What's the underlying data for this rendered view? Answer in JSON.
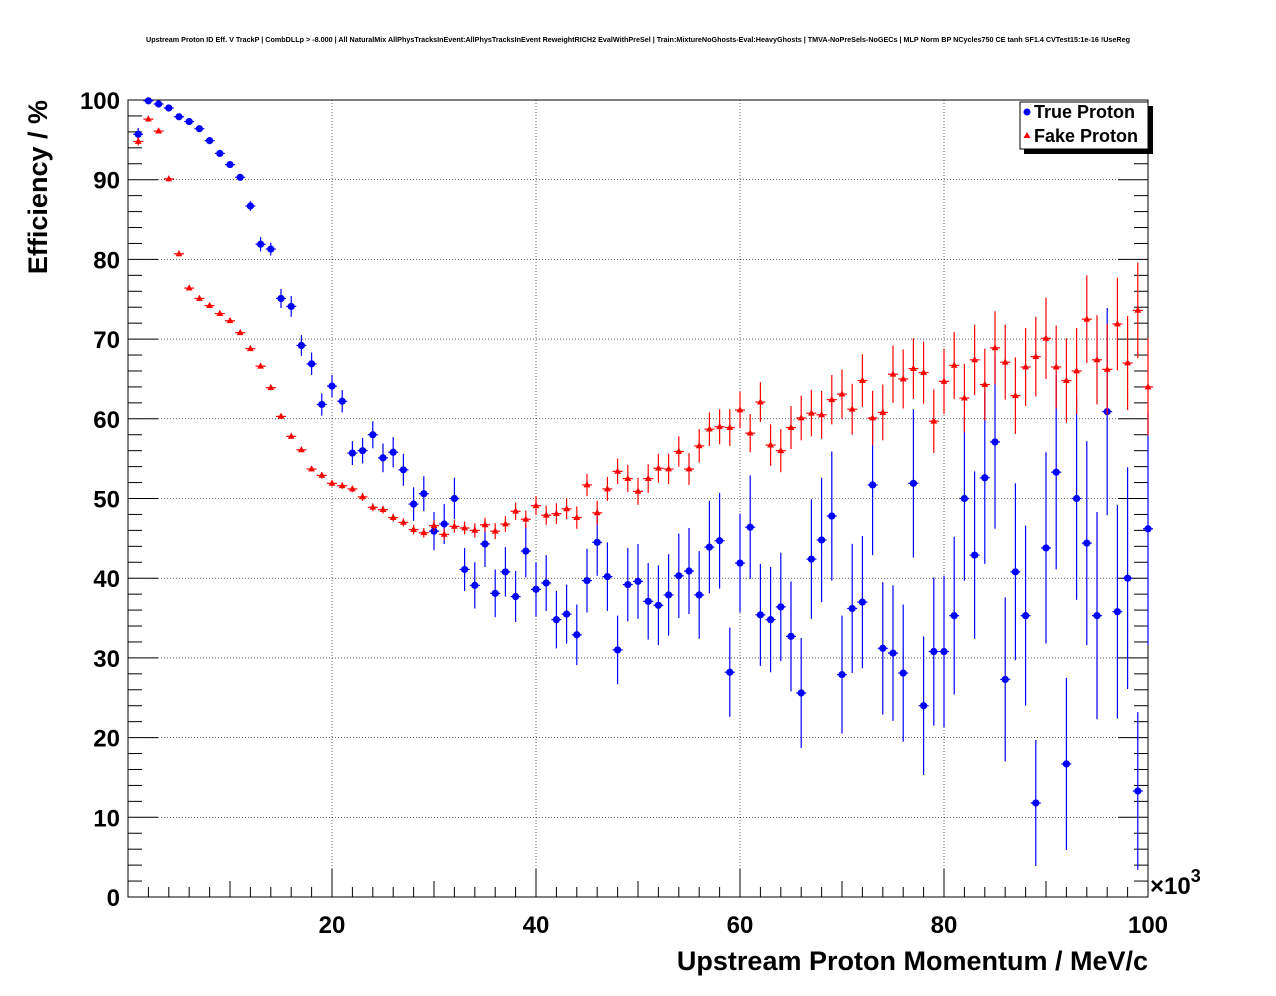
{
  "chart_data": {
    "type": "scatter",
    "title": "Upstream Proton ID Eff. V TrackP | CombDLLp > -8.000 | All NaturalMix AllPhysTracksInEvent:AllPhysTracksInEvent ReweightRICH2 EvalWithPreSel | Train:MixtureNoGhosts-Eval:HeavyGhosts | TMVA-NoPreSels-NoGECs | MLP Norm BP NCycles750 CE tanh SF1.4 CVTest15:1e-16 !UseReg",
    "xlabel": "Upstream Proton Momentum / MeV/c",
    "ylabel": "Efficiency / %",
    "x_multiplier_label": "×10",
    "x_multiplier_exp": "3",
    "xlim": [
      0,
      100
    ],
    "ylim": [
      0,
      100
    ],
    "x_ticks": [
      20,
      40,
      60,
      80,
      100
    ],
    "y_ticks": [
      0,
      10,
      20,
      30,
      40,
      50,
      60,
      70,
      80,
      90,
      100
    ],
    "grid": true,
    "legend_position": "top-right",
    "series": [
      {
        "name": "True Proton",
        "color": "#0000ff",
        "marker": "circle",
        "points": [
          [
            1.0,
            95.7,
            0.8
          ],
          [
            2.0,
            99.9,
            0.3
          ],
          [
            3.0,
            99.5,
            0.3
          ],
          [
            4.0,
            99.0,
            0.3
          ],
          [
            5.0,
            97.9,
            0.4
          ],
          [
            6.0,
            97.3,
            0.4
          ],
          [
            7.0,
            96.4,
            0.4
          ],
          [
            8.0,
            94.9,
            0.4
          ],
          [
            9.0,
            93.3,
            0.4
          ],
          [
            10.0,
            91.9,
            0.4
          ],
          [
            11.0,
            90.3,
            0.4
          ],
          [
            12.0,
            86.7,
            0.6
          ],
          [
            13.0,
            81.9,
            0.9
          ],
          [
            14.0,
            81.3,
            0.8
          ],
          [
            15.0,
            75.1,
            1.2
          ],
          [
            16.0,
            74.1,
            1.3
          ],
          [
            17.0,
            69.2,
            1.3
          ],
          [
            18.0,
            66.9,
            1.4
          ],
          [
            19.0,
            61.8,
            1.4
          ],
          [
            20.0,
            64.1,
            1.4
          ],
          [
            21.0,
            62.2,
            1.4
          ],
          [
            22.0,
            55.7,
            1.5
          ],
          [
            23.0,
            56.0,
            1.6
          ],
          [
            24.0,
            58.0,
            1.7
          ],
          [
            25.0,
            55.1,
            1.8
          ],
          [
            26.0,
            55.8,
            1.9
          ],
          [
            27.0,
            53.6,
            2.0
          ],
          [
            28.0,
            49.3,
            2.1
          ],
          [
            29.0,
            50.6,
            2.2
          ],
          [
            30.0,
            45.9,
            2.4
          ],
          [
            31.0,
            46.8,
            2.5
          ],
          [
            32.0,
            50.0,
            2.6
          ],
          [
            33.0,
            41.1,
            2.7
          ],
          [
            34.0,
            39.1,
            2.9
          ],
          [
            35.0,
            44.3,
            2.9
          ],
          [
            36.0,
            38.1,
            3.0
          ],
          [
            37.0,
            40.8,
            3.1
          ],
          [
            38.0,
            37.7,
            3.2
          ],
          [
            39.0,
            43.4,
            3.3
          ],
          [
            40.0,
            38.6,
            3.4
          ],
          [
            41.0,
            39.4,
            3.5
          ],
          [
            42.0,
            34.8,
            3.6
          ],
          [
            43.0,
            35.5,
            3.7
          ],
          [
            44.0,
            32.9,
            3.8
          ],
          [
            45.0,
            39.7,
            4.0
          ],
          [
            46.0,
            44.5,
            4.2
          ],
          [
            47.0,
            40.2,
            4.3
          ],
          [
            48.0,
            31.0,
            4.3
          ],
          [
            49.0,
            39.2,
            4.6
          ],
          [
            50.0,
            39.6,
            4.7
          ],
          [
            51.0,
            37.1,
            4.8
          ],
          [
            52.0,
            36.6,
            5.0
          ],
          [
            53.0,
            37.9,
            5.1
          ],
          [
            54.0,
            40.3,
            5.3
          ],
          [
            55.0,
            40.9,
            5.4
          ],
          [
            56.0,
            37.9,
            5.5
          ],
          [
            57.0,
            43.9,
            5.8
          ],
          [
            58.0,
            44.7,
            6.0
          ],
          [
            59.0,
            28.2,
            5.6
          ],
          [
            60.0,
            41.9,
            6.2
          ],
          [
            61.0,
            46.4,
            6.5
          ],
          [
            62.0,
            35.4,
            6.4
          ],
          [
            63.0,
            34.8,
            6.6
          ],
          [
            64.0,
            36.4,
            6.8
          ],
          [
            65.0,
            32.7,
            6.9
          ],
          [
            66.0,
            25.6,
            6.9
          ],
          [
            67.0,
            42.4,
            7.5
          ],
          [
            68.0,
            44.8,
            7.8
          ],
          [
            69.0,
            47.8,
            8.1
          ],
          [
            70.0,
            27.9,
            7.4
          ],
          [
            71.0,
            36.2,
            8.1
          ],
          [
            72.0,
            37.0,
            8.3
          ],
          [
            73.0,
            51.7,
            8.8
          ],
          [
            74.0,
            31.2,
            8.3
          ],
          [
            75.0,
            30.6,
            8.5
          ],
          [
            76.0,
            28.1,
            8.6
          ],
          [
            77.0,
            51.9,
            9.3
          ],
          [
            78.0,
            24.0,
            8.7
          ],
          [
            79.0,
            30.8,
            9.3
          ],
          [
            80.0,
            30.8,
            9.5
          ],
          [
            81.0,
            35.3,
            9.9
          ],
          [
            82.0,
            50.0,
            10.3
          ],
          [
            83.0,
            42.9,
            10.5
          ],
          [
            84.0,
            52.6,
            10.8
          ],
          [
            85.0,
            57.1,
            10.9
          ],
          [
            86.0,
            27.3,
            10.3
          ],
          [
            87.0,
            40.8,
            11.1
          ],
          [
            88.0,
            35.3,
            11.3
          ],
          [
            89.0,
            11.8,
            7.9
          ],
          [
            90.0,
            43.8,
            12.0
          ],
          [
            91.0,
            53.3,
            12.2
          ],
          [
            92.0,
            16.7,
            10.8
          ],
          [
            93.0,
            50.0,
            12.7
          ],
          [
            94.0,
            44.4,
            12.8
          ],
          [
            95.0,
            35.3,
            13.0
          ],
          [
            96.0,
            60.9,
            13.0
          ],
          [
            97.0,
            35.8,
            13.4
          ],
          [
            98.0,
            40.0,
            13.9
          ],
          [
            99.0,
            13.3,
            9.9
          ],
          [
            100.0,
            46.2,
            14.6
          ]
        ]
      },
      {
        "name": "Fake Proton",
        "color": "#ff0000",
        "marker": "triangle",
        "points": [
          [
            1.0,
            94.8,
            0.5
          ],
          [
            2.0,
            97.6,
            0.3
          ],
          [
            3.0,
            96.1,
            0.3
          ],
          [
            4.0,
            90.1,
            0.3
          ],
          [
            5.0,
            80.7,
            0.3
          ],
          [
            6.0,
            76.4,
            0.3
          ],
          [
            7.0,
            75.1,
            0.3
          ],
          [
            8.0,
            74.2,
            0.3
          ],
          [
            9.0,
            73.2,
            0.3
          ],
          [
            10.0,
            72.3,
            0.3
          ],
          [
            11.0,
            70.8,
            0.3
          ],
          [
            12.0,
            68.8,
            0.3
          ],
          [
            13.0,
            66.6,
            0.3
          ],
          [
            14.0,
            63.9,
            0.3
          ],
          [
            15.0,
            60.3,
            0.3
          ],
          [
            16.0,
            57.8,
            0.3
          ],
          [
            17.0,
            56.1,
            0.3
          ],
          [
            18.0,
            53.7,
            0.3
          ],
          [
            19.0,
            52.9,
            0.4
          ],
          [
            20.0,
            51.9,
            0.4
          ],
          [
            21.0,
            51.6,
            0.4
          ],
          [
            22.0,
            51.2,
            0.4
          ],
          [
            23.0,
            50.2,
            0.5
          ],
          [
            24.0,
            48.9,
            0.5
          ],
          [
            25.0,
            48.6,
            0.5
          ],
          [
            26.0,
            47.6,
            0.5
          ],
          [
            27.0,
            47.0,
            0.5
          ],
          [
            28.0,
            46.1,
            0.6
          ],
          [
            29.0,
            45.7,
            0.6
          ],
          [
            30.0,
            46.6,
            0.7
          ],
          [
            31.0,
            45.5,
            0.7
          ],
          [
            32.0,
            46.5,
            0.8
          ],
          [
            33.0,
            46.3,
            0.8
          ],
          [
            34.0,
            46.0,
            0.9
          ],
          [
            35.0,
            46.7,
            0.9
          ],
          [
            36.0,
            45.9,
            1.0
          ],
          [
            37.0,
            46.8,
            1.0
          ],
          [
            38.0,
            48.4,
            1.1
          ],
          [
            39.0,
            47.4,
            1.1
          ],
          [
            40.0,
            49.1,
            1.2
          ],
          [
            41.0,
            47.9,
            1.2
          ],
          [
            42.0,
            48.1,
            1.3
          ],
          [
            43.0,
            48.7,
            1.3
          ],
          [
            44.0,
            47.6,
            1.4
          ],
          [
            45.0,
            51.7,
            1.4
          ],
          [
            46.0,
            48.2,
            1.5
          ],
          [
            47.0,
            51.2,
            1.5
          ],
          [
            48.0,
            53.4,
            1.6
          ],
          [
            49.0,
            52.5,
            1.7
          ],
          [
            50.0,
            50.9,
            1.7
          ],
          [
            51.0,
            52.5,
            1.8
          ],
          [
            52.0,
            53.8,
            1.8
          ],
          [
            53.0,
            53.7,
            1.9
          ],
          [
            54.0,
            55.9,
            1.9
          ],
          [
            55.0,
            53.7,
            2.0
          ],
          [
            56.0,
            56.6,
            2.1
          ],
          [
            57.0,
            58.7,
            2.1
          ],
          [
            58.0,
            59.0,
            2.2
          ],
          [
            59.0,
            58.9,
            2.3
          ],
          [
            60.0,
            61.1,
            2.3
          ],
          [
            61.0,
            58.2,
            2.4
          ],
          [
            62.0,
            62.1,
            2.5
          ],
          [
            63.0,
            56.7,
            2.6
          ],
          [
            64.0,
            56.0,
            2.7
          ],
          [
            65.0,
            58.9,
            2.7
          ],
          [
            66.0,
            60.1,
            2.8
          ],
          [
            67.0,
            60.7,
            2.9
          ],
          [
            68.0,
            60.5,
            3.0
          ],
          [
            69.0,
            62.4,
            3.1
          ],
          [
            70.0,
            63.1,
            3.1
          ],
          [
            71.0,
            61.2,
            3.2
          ],
          [
            72.0,
            64.8,
            3.3
          ],
          [
            73.0,
            60.1,
            3.4
          ],
          [
            74.0,
            60.8,
            3.5
          ],
          [
            75.0,
            65.6,
            3.6
          ],
          [
            76.0,
            65.0,
            3.7
          ],
          [
            77.0,
            66.3,
            3.8
          ],
          [
            78.0,
            65.8,
            3.9
          ],
          [
            79.0,
            59.7,
            4.0
          ],
          [
            80.0,
            64.7,
            4.1
          ],
          [
            81.0,
            66.7,
            4.2
          ],
          [
            82.0,
            62.6,
            4.3
          ],
          [
            83.0,
            67.4,
            4.4
          ],
          [
            84.0,
            64.3,
            4.5
          ],
          [
            85.0,
            68.9,
            4.6
          ],
          [
            86.0,
            67.1,
            4.7
          ],
          [
            87.0,
            62.9,
            4.8
          ],
          [
            88.0,
            66.5,
            4.9
          ],
          [
            89.0,
            67.8,
            5.0
          ],
          [
            90.0,
            70.1,
            5.1
          ],
          [
            91.0,
            66.5,
            5.2
          ],
          [
            92.0,
            64.8,
            5.3
          ],
          [
            93.0,
            66.0,
            5.4
          ],
          [
            94.0,
            72.5,
            5.5
          ],
          [
            95.0,
            67.4,
            5.6
          ],
          [
            96.0,
            66.2,
            5.7
          ],
          [
            97.0,
            71.9,
            5.8
          ],
          [
            98.0,
            67.0,
            5.9
          ],
          [
            99.0,
            73.6,
            6.0
          ],
          [
            100.0,
            64.0,
            6.1
          ]
        ]
      }
    ]
  }
}
